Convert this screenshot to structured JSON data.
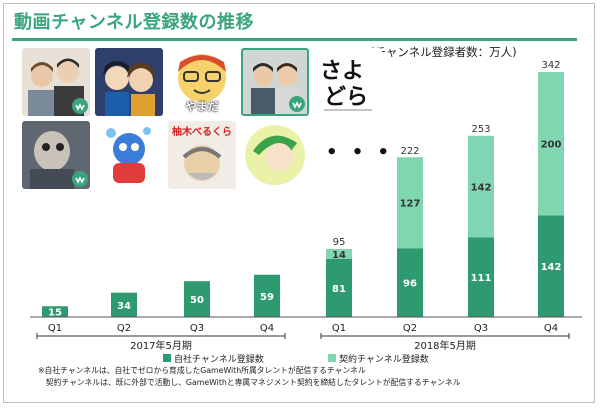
{
  "title": "動画チャンネル登録数の推移",
  "unit_note": "(チャンネル登録者数：万人)",
  "colors": {
    "accent": "#3aa57c",
    "own": "#2e9a70",
    "contract": "#7fd6b0",
    "baseline": "#555555"
  },
  "thumbnails": {
    "row1": [
      {
        "name": "two-young-men-channel",
        "icon": "gamewith-badge-icon"
      },
      {
        "name": "anime-duo-channel"
      },
      {
        "name": "yamada-channel",
        "label": "やまだ"
      },
      {
        "name": "two-men-channel",
        "icon": "gamewith-badge-icon"
      },
      {
        "name": "sayodora-logo",
        "label": "さよどら"
      }
    ],
    "row2": [
      {
        "name": "masked-figure-channel",
        "icon": "gamewith-badge-icon"
      },
      {
        "name": "blue-mascot-channel"
      },
      {
        "name": "yuzu-beru-kura-channel",
        "label": "柚木べるくら"
      },
      {
        "name": "green-hair-channel"
      }
    ],
    "more": "• • •"
  },
  "chart_data": {
    "type": "bar",
    "stacked": true,
    "categories": [
      "Q1",
      "Q2",
      "Q3",
      "Q4",
      "Q1",
      "Q2",
      "Q3",
      "Q4"
    ],
    "groups": [
      {
        "label": "2017年5月期",
        "categories": [
          "Q1",
          "Q2",
          "Q3",
          "Q4"
        ]
      },
      {
        "label": "2018年5月期",
        "categories": [
          "Q1",
          "Q2",
          "Q3",
          "Q4"
        ]
      }
    ],
    "series": [
      {
        "name": "自社チャンネル登録数",
        "values": [
          15,
          34,
          50,
          59,
          81,
          96,
          111,
          142
        ]
      },
      {
        "name": "契約チャンネル登録数",
        "values": [
          null,
          null,
          null,
          null,
          14,
          127,
          142,
          200
        ]
      }
    ],
    "totals": [
      null,
      null,
      null,
      null,
      95,
      222,
      253,
      342
    ],
    "ylim": [
      0,
      342
    ],
    "legend_position": "bottom",
    "grid": false
  },
  "footnotes": [
    "※自社チャンネルは、自社でゼロから育成したGameWith所属タレントが配信するチャンネル",
    "　契約チャンネルは、既に外部で活動し、GameWithと専属マネジメント契約を締結したタレントが配信するチャンネル"
  ]
}
